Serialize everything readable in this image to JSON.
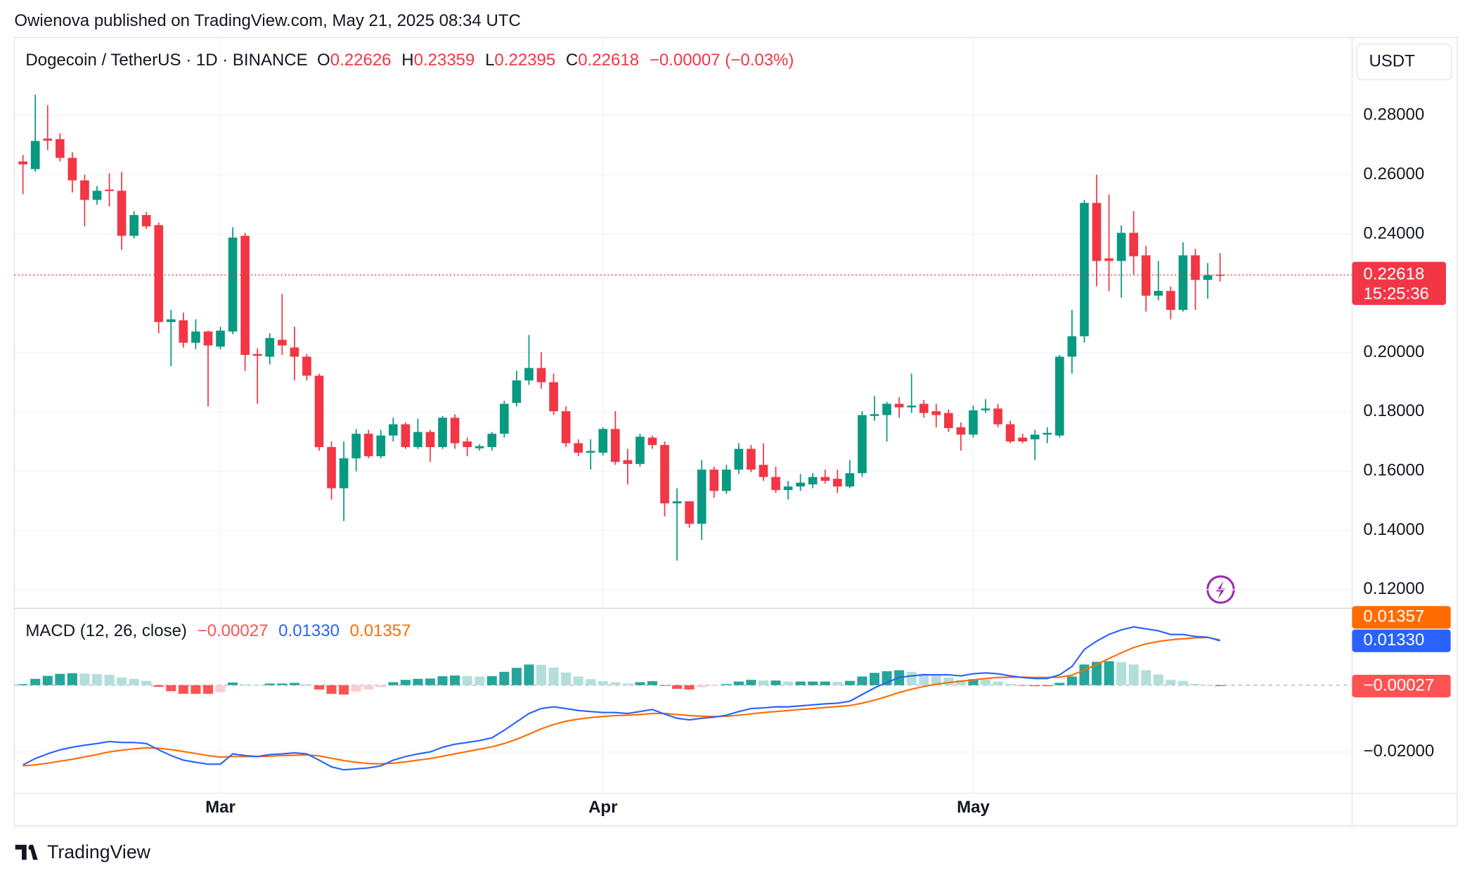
{
  "header": {
    "text": "Owienova published on TradingView.com, May 21, 2025 08:34 UTC"
  },
  "chart_data": [
    {
      "type": "candlestick",
      "title": "Dogecoin / TetherUS · 1D · BINANCE",
      "ohlc_letters": [
        "O",
        "H",
        "L",
        "C"
      ],
      "change": "−0.00007 (−0.03%)",
      "currency": "USDT",
      "countdown": "15:25:36",
      "up_color": "#089981",
      "down_color": "#f23645",
      "grid": true,
      "xlim": [
        -0.7,
        107.7
      ],
      "ylim": [
        0.1137,
        0.3063
      ],
      "yticks": [
        {
          "value": 0.12,
          "label": "0.12000"
        },
        {
          "value": 0.14,
          "label": "0.14000"
        },
        {
          "value": 0.16,
          "label": "0.16000"
        },
        {
          "value": 0.18,
          "label": "0.18000"
        },
        {
          "value": 0.2,
          "label": "0.20000"
        },
        {
          "value": 0.24,
          "label": "0.24000"
        },
        {
          "value": 0.26,
          "label": "0.26000"
        },
        {
          "value": 0.28,
          "label": "0.28000"
        }
      ],
      "xticks": [
        {
          "value": 16,
          "label": "Mar"
        },
        {
          "value": 47,
          "label": "Apr"
        },
        {
          "value": 77,
          "label": "May"
        }
      ],
      "open": [
        0.2645,
        0.2619,
        0.2722,
        0.272,
        0.2657,
        0.2581,
        0.2515,
        0.255,
        0.2546,
        0.2394,
        0.2464,
        0.243,
        0.2103,
        0.2109,
        0.2033,
        0.2071,
        0.202,
        0.2071,
        0.2394,
        0.1995,
        0.1986,
        0.2043,
        0.2017,
        0.1986,
        0.1922,
        0.1681,
        0.1542,
        0.1643,
        0.1726,
        0.165,
        0.172,
        0.1758,
        0.1681,
        0.1732,
        0.1681,
        0.178,
        0.17,
        0.1677,
        0.1681,
        0.1726,
        0.183,
        0.1906,
        0.1948,
        0.19,
        0.1802,
        0.1694,
        0.1662,
        0.1662,
        0.1742,
        0.1637,
        0.1624,
        0.1713,
        0.1688,
        0.1491,
        0.1498,
        0.1422,
        0.1605,
        0.1533,
        0.1605,
        0.1675,
        0.1621,
        0.158,
        0.1536,
        0.1548,
        0.1555,
        0.158,
        0.1574,
        0.1548,
        0.1593,
        0.1786,
        0.1789,
        0.1827,
        0.1815,
        0.1827,
        0.1802,
        0.1796,
        0.1748,
        0.1723,
        0.1805,
        0.1811,
        0.1758,
        0.1713,
        0.1707,
        0.1723,
        0.172,
        0.1986,
        0.2055,
        0.2505,
        0.2318,
        0.2309,
        0.2404,
        0.2328,
        0.2192,
        0.2208,
        0.2144,
        0.2328,
        0.2245,
        0.22626
      ],
      "high": [
        0.2667,
        0.287,
        0.2835,
        0.274,
        0.2676,
        0.26,
        0.2562,
        0.2605,
        0.261,
        0.2477,
        0.2474,
        0.2439,
        0.2144,
        0.2135,
        0.2112,
        0.2074,
        0.2087,
        0.2423,
        0.2404,
        0.2014,
        0.2065,
        0.2198,
        0.2087,
        0.1995,
        0.1929,
        0.17,
        0.17,
        0.1742,
        0.1739,
        0.1739,
        0.178,
        0.1764,
        0.1777,
        0.1739,
        0.1786,
        0.1792,
        0.1713,
        0.1691,
        0.1732,
        0.1837,
        0.1938,
        0.2059,
        0.2001,
        0.1929,
        0.1818,
        0.1707,
        0.1707,
        0.1748,
        0.1802,
        0.1675,
        0.1726,
        0.172,
        0.17,
        0.1542,
        0.1498,
        0.1637,
        0.1615,
        0.1621,
        0.1694,
        0.1688,
        0.1694,
        0.1615,
        0.1567,
        0.159,
        0.1593,
        0.1605,
        0.1605,
        0.1637,
        0.1802,
        0.1853,
        0.1834,
        0.1849,
        0.1929,
        0.184,
        0.1827,
        0.1808,
        0.1764,
        0.1821,
        0.1843,
        0.1827,
        0.177,
        0.1726,
        0.1739,
        0.1748,
        0.1992,
        0.2144,
        0.2515,
        0.26,
        0.2534,
        0.2429,
        0.2477,
        0.236,
        0.2309,
        0.2223,
        0.2372,
        0.235,
        0.2302,
        0.23359
      ],
      "low": [
        0.2534,
        0.261,
        0.2683,
        0.2645,
        0.254,
        0.2426,
        0.2499,
        0.2493,
        0.2347,
        0.2385,
        0.2417,
        0.2065,
        0.1954,
        0.2017,
        0.2011,
        0.1818,
        0.2011,
        0.2062,
        0.1938,
        0.1827,
        0.196,
        0.1992,
        0.1906,
        0.1906,
        0.1669,
        0.1504,
        0.1431,
        0.1599,
        0.1643,
        0.1643,
        0.17,
        0.1675,
        0.1675,
        0.1631,
        0.1675,
        0.1675,
        0.165,
        0.1669,
        0.1669,
        0.1713,
        0.1818,
        0.1891,
        0.1878,
        0.1789,
        0.1681,
        0.165,
        0.1605,
        0.1653,
        0.1621,
        0.1555,
        0.1615,
        0.1675,
        0.1447,
        0.1298,
        0.1409,
        0.1368,
        0.151,
        0.1523,
        0.159,
        0.1596,
        0.1567,
        0.1526,
        0.1504,
        0.1533,
        0.1542,
        0.1558,
        0.1526,
        0.1542,
        0.158,
        0.177,
        0.17,
        0.178,
        0.1796,
        0.178,
        0.1748,
        0.1732,
        0.1669,
        0.1713,
        0.1796,
        0.1748,
        0.1694,
        0.1694,
        0.1637,
        0.1694,
        0.1713,
        0.1929,
        0.2033,
        0.2223,
        0.2207,
        0.2185,
        0.2264,
        0.2138,
        0.2176,
        0.2112,
        0.2138,
        0.2144,
        0.2182,
        0.22395
      ],
      "close": [
        0.2635,
        0.2714,
        0.2715,
        0.2657,
        0.2581,
        0.2515,
        0.2546,
        0.2545,
        0.2394,
        0.2464,
        0.2426,
        0.2103,
        0.2112,
        0.2033,
        0.2071,
        0.2024,
        0.2074,
        0.2388,
        0.1992,
        0.1989,
        0.2049,
        0.2024,
        0.1986,
        0.1922,
        0.1681,
        0.1542,
        0.1643,
        0.1726,
        0.165,
        0.172,
        0.1758,
        0.1681,
        0.1732,
        0.1681,
        0.178,
        0.1694,
        0.1681,
        0.1684,
        0.1726,
        0.1827,
        0.1906,
        0.1948,
        0.19,
        0.1802,
        0.1694,
        0.1662,
        0.1668,
        0.1742,
        0.1631,
        0.1624,
        0.1716,
        0.1688,
        0.1491,
        0.1498,
        0.1422,
        0.1605,
        0.1533,
        0.1605,
        0.1675,
        0.1605,
        0.158,
        0.1536,
        0.1548,
        0.1561,
        0.158,
        0.1567,
        0.1548,
        0.1593,
        0.1789,
        0.1792,
        0.1827,
        0.1815,
        0.1821,
        0.1796,
        0.1789,
        0.1745,
        0.1723,
        0.1805,
        0.1811,
        0.1758,
        0.17,
        0.17,
        0.1723,
        0.1729,
        0.1986,
        0.2055,
        0.2505,
        0.2309,
        0.2309,
        0.2404,
        0.2325,
        0.2192,
        0.2208,
        0.2144,
        0.2328,
        0.2245,
        0.2261,
        0.22618
      ]
    },
    {
      "type": "macd",
      "title": "MACD (12, 26, close)",
      "ylim": [
        -0.0324,
        0.0225
      ],
      "yticks": [
        {
          "value": -0.02,
          "label": "−0.02000"
        }
      ],
      "histogram": {
        "last_label": "−0.00027",
        "colors": {
          "up_rising": "#26a69a",
          "up_falling": "#b2dfdb",
          "down_falling": "#ff5252",
          "down_rising": "#ffcdd2"
        },
        "values": [
          0.0003,
          0.0019,
          0.0028,
          0.0034,
          0.0036,
          0.0035,
          0.0033,
          0.0031,
          0.0023,
          0.0019,
          0.0013,
          -0.0005,
          -0.0018,
          -0.0026,
          -0.0026,
          -0.0026,
          -0.0021,
          0.0008,
          0.0003,
          0,
          0.0005,
          0.0005,
          0.0007,
          0.0003,
          -0.0013,
          -0.0026,
          -0.0028,
          -0.002,
          -0.0013,
          -0.0006,
          0.0009,
          0.0016,
          0.0019,
          0.002,
          0.0027,
          0.0029,
          0.0027,
          0.0026,
          0.0027,
          0.004,
          0.0052,
          0.0062,
          0.0061,
          0.0053,
          0.0038,
          0.0026,
          0.0018,
          0.0012,
          0.0009,
          0.0005,
          0.0009,
          0.0012,
          -0.0002,
          -0.0011,
          -0.0013,
          -0.0006,
          -0.0002,
          0.0003,
          0.0011,
          0.0016,
          0.0014,
          0.0014,
          0.0011,
          0.0011,
          0.0011,
          0.0011,
          0.001,
          0.0013,
          0.0026,
          0.0037,
          0.0042,
          0.0045,
          0.004,
          0.0035,
          0.0028,
          0.0023,
          0.0016,
          0.0018,
          0.0017,
          0.0011,
          0.0004,
          -0.0001,
          -0.0003,
          -0.0003,
          0.0007,
          0.0026,
          0.0062,
          0.007,
          0.0072,
          0.0069,
          0.0062,
          0.0045,
          0.0032,
          0.0016,
          0.0013,
          0.0004,
          0.0001,
          -0.00027
        ]
      },
      "macd": {
        "color": "#2962ff",
        "last_label": "0.01330",
        "values": [
          -0.0239,
          -0.022,
          -0.0206,
          -0.0194,
          -0.0186,
          -0.018,
          -0.0175,
          -0.0169,
          -0.0172,
          -0.0172,
          -0.0175,
          -0.0194,
          -0.0211,
          -0.0225,
          -0.0231,
          -0.0237,
          -0.0237,
          -0.0206,
          -0.0211,
          -0.0214,
          -0.0208,
          -0.0206,
          -0.0203,
          -0.0206,
          -0.0225,
          -0.0245,
          -0.0254,
          -0.0251,
          -0.0248,
          -0.0242,
          -0.0225,
          -0.0214,
          -0.0206,
          -0.02,
          -0.0186,
          -0.0177,
          -0.0172,
          -0.0166,
          -0.0158,
          -0.0135,
          -0.011,
          -0.0085,
          -0.007,
          -0.0065,
          -0.007,
          -0.0076,
          -0.0079,
          -0.0082,
          -0.0082,
          -0.0085,
          -0.0079,
          -0.0073,
          -0.0087,
          -0.0099,
          -0.0104,
          -0.0099,
          -0.0096,
          -0.009,
          -0.0079,
          -0.007,
          -0.0068,
          -0.0065,
          -0.0065,
          -0.0062,
          -0.0059,
          -0.0056,
          -0.0054,
          -0.0048,
          -0.0028,
          -0.0008,
          0.0008,
          0.0023,
          0.0028,
          0.0031,
          0.0031,
          0.0031,
          0.0028,
          0.0034,
          0.0037,
          0.0034,
          0.0028,
          0.0023,
          0.002,
          0.002,
          0.0031,
          0.0056,
          0.0107,
          0.0132,
          0.0152,
          0.0166,
          0.0175,
          0.0169,
          0.0163,
          0.0152,
          0.0152,
          0.0146,
          0.0144,
          0.0133
        ]
      },
      "signal": {
        "color": "#ff6d00",
        "last_label": "0.01357",
        "values": [
          -0.0242,
          -0.0239,
          -0.0234,
          -0.0228,
          -0.0222,
          -0.0215,
          -0.0208,
          -0.02,
          -0.0195,
          -0.0191,
          -0.0188,
          -0.0189,
          -0.0193,
          -0.0199,
          -0.0205,
          -0.0211,
          -0.0216,
          -0.0214,
          -0.0214,
          -0.0214,
          -0.0213,
          -0.0211,
          -0.021,
          -0.0209,
          -0.0212,
          -0.0219,
          -0.0226,
          -0.0231,
          -0.0235,
          -0.0236,
          -0.0234,
          -0.023,
          -0.0225,
          -0.022,
          -0.0213,
          -0.0206,
          -0.0199,
          -0.0192,
          -0.0185,
          -0.0175,
          -0.0162,
          -0.0147,
          -0.0131,
          -0.0118,
          -0.0108,
          -0.0102,
          -0.0097,
          -0.0094,
          -0.0091,
          -0.009,
          -0.0088,
          -0.0085,
          -0.0085,
          -0.0088,
          -0.0091,
          -0.0093,
          -0.0094,
          -0.0093,
          -0.009,
          -0.0086,
          -0.0082,
          -0.0079,
          -0.0076,
          -0.0073,
          -0.007,
          -0.0067,
          -0.0064,
          -0.0061,
          -0.0054,
          -0.0045,
          -0.0034,
          -0.0022,
          -0.0012,
          -0.0004,
          0.0003,
          0.0008,
          0.0012,
          0.0016,
          0.002,
          0.0023,
          0.0024,
          0.0024,
          0.0023,
          0.0023,
          0.0024,
          0.003,
          0.0045,
          0.0062,
          0.008,
          0.0097,
          0.0113,
          0.0124,
          0.0131,
          0.0136,
          0.0139,
          0.0142,
          0.0143,
          0.01357
        ]
      }
    }
  ],
  "footer": {
    "brand": "TradingView"
  }
}
